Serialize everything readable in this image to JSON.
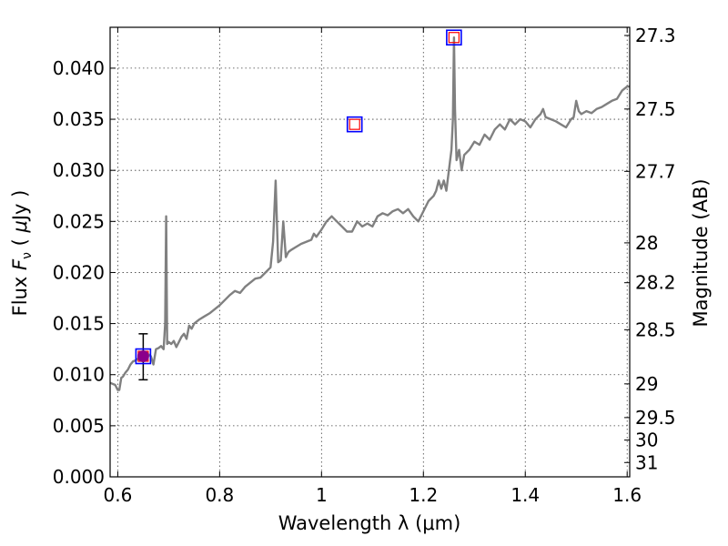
{
  "chart_data": {
    "type": "line",
    "xlabel": "Wavelength  λ (μm)",
    "ylabel": "Flux  Fν  ( μJy )",
    "ylabel_parts": {
      "pre": "Flux  ",
      "var": "F",
      "sub": "ν",
      "mid": "  ( ",
      "mu": "μ",
      "post": "Jy )"
    },
    "y2label": "Magnitude (AB)",
    "xlim": [
      0.585,
      1.605
    ],
    "ylim": [
      0.0,
      0.044
    ],
    "grid": true,
    "x_ticks": [
      {
        "value": 0.6,
        "label": "0.6"
      },
      {
        "value": 0.8,
        "label": "0.8"
      },
      {
        "value": 1.0,
        "label": "1"
      },
      {
        "value": 1.2,
        "label": "1.2"
      },
      {
        "value": 1.4,
        "label": "1.4"
      },
      {
        "value": 1.6,
        "label": "1.6"
      }
    ],
    "y_ticks": [
      {
        "value": 0.0,
        "label": "0.000"
      },
      {
        "value": 0.005,
        "label": "0.005"
      },
      {
        "value": 0.01,
        "label": "0.010"
      },
      {
        "value": 0.015,
        "label": "0.015"
      },
      {
        "value": 0.02,
        "label": "0.020"
      },
      {
        "value": 0.025,
        "label": "0.025"
      },
      {
        "value": 0.03,
        "label": "0.030"
      },
      {
        "value": 0.035,
        "label": "0.035"
      },
      {
        "value": 0.04,
        "label": "0.040"
      }
    ],
    "y2_ticks": [
      {
        "flux": 0.0432,
        "label": "27.3"
      },
      {
        "flux": 0.036,
        "label": "27.5"
      },
      {
        "flux": 0.0299,
        "label": "27.7"
      },
      {
        "flux": 0.0229,
        "label": "28"
      },
      {
        "flux": 0.019,
        "label": "28.2"
      },
      {
        "flux": 0.0144,
        "label": "28.5"
      },
      {
        "flux": 0.0091,
        "label": "29"
      },
      {
        "flux": 0.0058,
        "label": "29.5"
      },
      {
        "flux": 0.0036,
        "label": "30"
      },
      {
        "flux": 0.0014,
        "label": "31"
      }
    ],
    "series": [
      {
        "color": "#808080",
        "x": [
          0.585,
          0.595,
          0.6,
          0.603,
          0.607,
          0.61,
          0.615,
          0.62,
          0.625,
          0.63,
          0.635,
          0.64,
          0.645,
          0.65,
          0.655,
          0.66,
          0.665,
          0.67,
          0.675,
          0.68,
          0.685,
          0.69,
          0.693,
          0.695,
          0.697,
          0.7,
          0.705,
          0.71,
          0.715,
          0.72,
          0.725,
          0.73,
          0.735,
          0.74,
          0.745,
          0.75,
          0.76,
          0.77,
          0.78,
          0.79,
          0.8,
          0.81,
          0.82,
          0.83,
          0.84,
          0.85,
          0.86,
          0.87,
          0.88,
          0.89,
          0.9,
          0.905,
          0.91,
          0.915,
          0.92,
          0.925,
          0.93,
          0.935,
          0.94,
          0.95,
          0.96,
          0.97,
          0.98,
          0.985,
          0.99,
          1.0,
          1.01,
          1.02,
          1.03,
          1.04,
          1.05,
          1.06,
          1.07,
          1.08,
          1.09,
          1.1,
          1.11,
          1.12,
          1.13,
          1.14,
          1.15,
          1.16,
          1.17,
          1.18,
          1.19,
          1.2,
          1.21,
          1.22,
          1.225,
          1.23,
          1.235,
          1.24,
          1.245,
          1.25,
          1.255,
          1.258,
          1.26,
          1.262,
          1.265,
          1.27,
          1.275,
          1.28,
          1.29,
          1.3,
          1.31,
          1.32,
          1.33,
          1.34,
          1.35,
          1.36,
          1.37,
          1.38,
          1.39,
          1.4,
          1.41,
          1.42,
          1.43,
          1.435,
          1.44,
          1.45,
          1.46,
          1.47,
          1.48,
          1.49,
          1.495,
          1.5,
          1.505,
          1.51,
          1.52,
          1.53,
          1.54,
          1.55,
          1.56,
          1.57,
          1.58,
          1.59,
          1.6,
          1.605
        ],
        "values": [
          0.0092,
          0.009,
          0.0085,
          0.0085,
          0.0097,
          0.0098,
          0.0102,
          0.0105,
          0.011,
          0.0113,
          0.0114,
          0.0116,
          0.0115,
          0.0117,
          0.0118,
          0.012,
          0.0118,
          0.011,
          0.0125,
          0.0126,
          0.0128,
          0.0125,
          0.015,
          0.0255,
          0.013,
          0.0132,
          0.013,
          0.0133,
          0.0127,
          0.0132,
          0.0137,
          0.014,
          0.0135,
          0.0148,
          0.0145,
          0.015,
          0.0154,
          0.0157,
          0.016,
          0.0164,
          0.0168,
          0.0173,
          0.0178,
          0.0182,
          0.018,
          0.0186,
          0.019,
          0.0194,
          0.0195,
          0.02,
          0.0205,
          0.023,
          0.029,
          0.021,
          0.0212,
          0.025,
          0.0215,
          0.022,
          0.0222,
          0.0225,
          0.0228,
          0.023,
          0.0232,
          0.0238,
          0.0235,
          0.0242,
          0.025,
          0.0255,
          0.025,
          0.0245,
          0.024,
          0.024,
          0.025,
          0.0245,
          0.0248,
          0.0245,
          0.0255,
          0.0258,
          0.0256,
          0.026,
          0.0262,
          0.0258,
          0.0262,
          0.0255,
          0.025,
          0.026,
          0.027,
          0.0275,
          0.028,
          0.029,
          0.0282,
          0.029,
          0.028,
          0.03,
          0.032,
          0.035,
          0.043,
          0.036,
          0.031,
          0.032,
          0.03,
          0.0315,
          0.032,
          0.0328,
          0.0325,
          0.0335,
          0.033,
          0.034,
          0.0345,
          0.034,
          0.035,
          0.0345,
          0.035,
          0.0348,
          0.0342,
          0.035,
          0.0355,
          0.036,
          0.0352,
          0.035,
          0.0348,
          0.0345,
          0.0342,
          0.035,
          0.0352,
          0.0368,
          0.0358,
          0.0355,
          0.0358,
          0.0356,
          0.036,
          0.0362,
          0.0365,
          0.0368,
          0.037,
          0.0378,
          0.0382,
          0.0382
        ]
      }
    ],
    "markers": [
      {
        "x": 0.65,
        "y": 0.0118,
        "square_color": "#0000ff",
        "inner_square_color": "#ff0000",
        "circle_color": "#8b008b",
        "yerr_low": 0.0095,
        "yerr_high": 0.014
      },
      {
        "x": 1.065,
        "y": 0.0345,
        "square_color": "#0000ff",
        "inner_square_color": "#ff0000"
      },
      {
        "x": 1.26,
        "y": 0.043,
        "square_color": "#0000ff",
        "inner_square_color": "#ff0000"
      }
    ]
  }
}
